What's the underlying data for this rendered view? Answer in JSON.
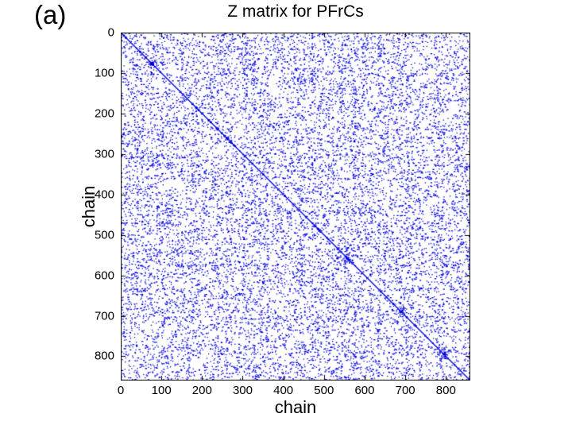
{
  "page": {
    "background": "#ffffff"
  },
  "panel_label": "(a)",
  "chart_data": {
    "type": "scatter",
    "subtype": "sparse-matrix-spy-plot",
    "title": "Z matrix for PFrCs",
    "xlabel": "chain",
    "ylabel": "chain",
    "xlim": [
      0,
      860
    ],
    "ylim": [
      0,
      860
    ],
    "y_axis_direction": "down",
    "x_ticks": [
      0,
      100,
      200,
      300,
      400,
      500,
      600,
      700,
      800
    ],
    "y_ticks": [
      0,
      100,
      200,
      300,
      400,
      500,
      600,
      700,
      800
    ],
    "grid": false,
    "legend": null,
    "marker_color": "#0000dd",
    "axis_color": "#000000",
    "background": "#ffffff",
    "features": {
      "main_diagonal": true,
      "symmetric": true,
      "approx_point_density": 0.06,
      "matrix_size": 860,
      "dense_diagonal_blocks": [
        {
          "pos": 77,
          "size": 5
        },
        {
          "pos": 558,
          "size": 3
        },
        {
          "pos": 690,
          "size": 3
        },
        {
          "pos": 795,
          "size": 3
        }
      ]
    },
    "generation": {
      "seed": 1337,
      "num_samples": 7200,
      "bold_diagonal_dots": 20
    }
  }
}
